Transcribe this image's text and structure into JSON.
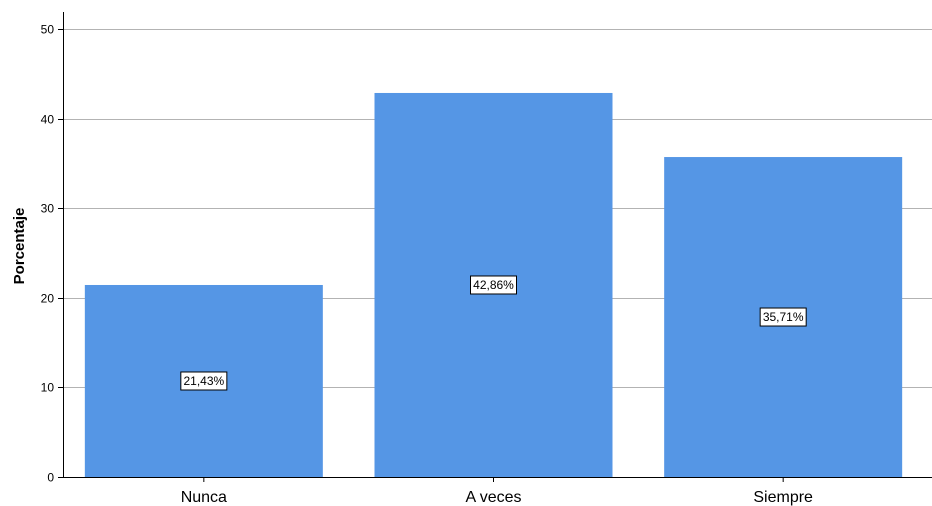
{
  "chart_data": {
    "type": "bar",
    "categories": [
      "Nunca",
      "A veces",
      "Siempre"
    ],
    "values": [
      21.43,
      42.86,
      35.71
    ],
    "data_labels": [
      "21,43%",
      "42,86%",
      "35,71%"
    ],
    "ylabel": "Porcentaje",
    "xlabel": "",
    "ylim": [
      0,
      50
    ],
    "yticks": [
      0,
      10,
      20,
      30,
      40,
      50
    ],
    "grid": true,
    "bar_color": "#5596e5",
    "legend": "none"
  }
}
